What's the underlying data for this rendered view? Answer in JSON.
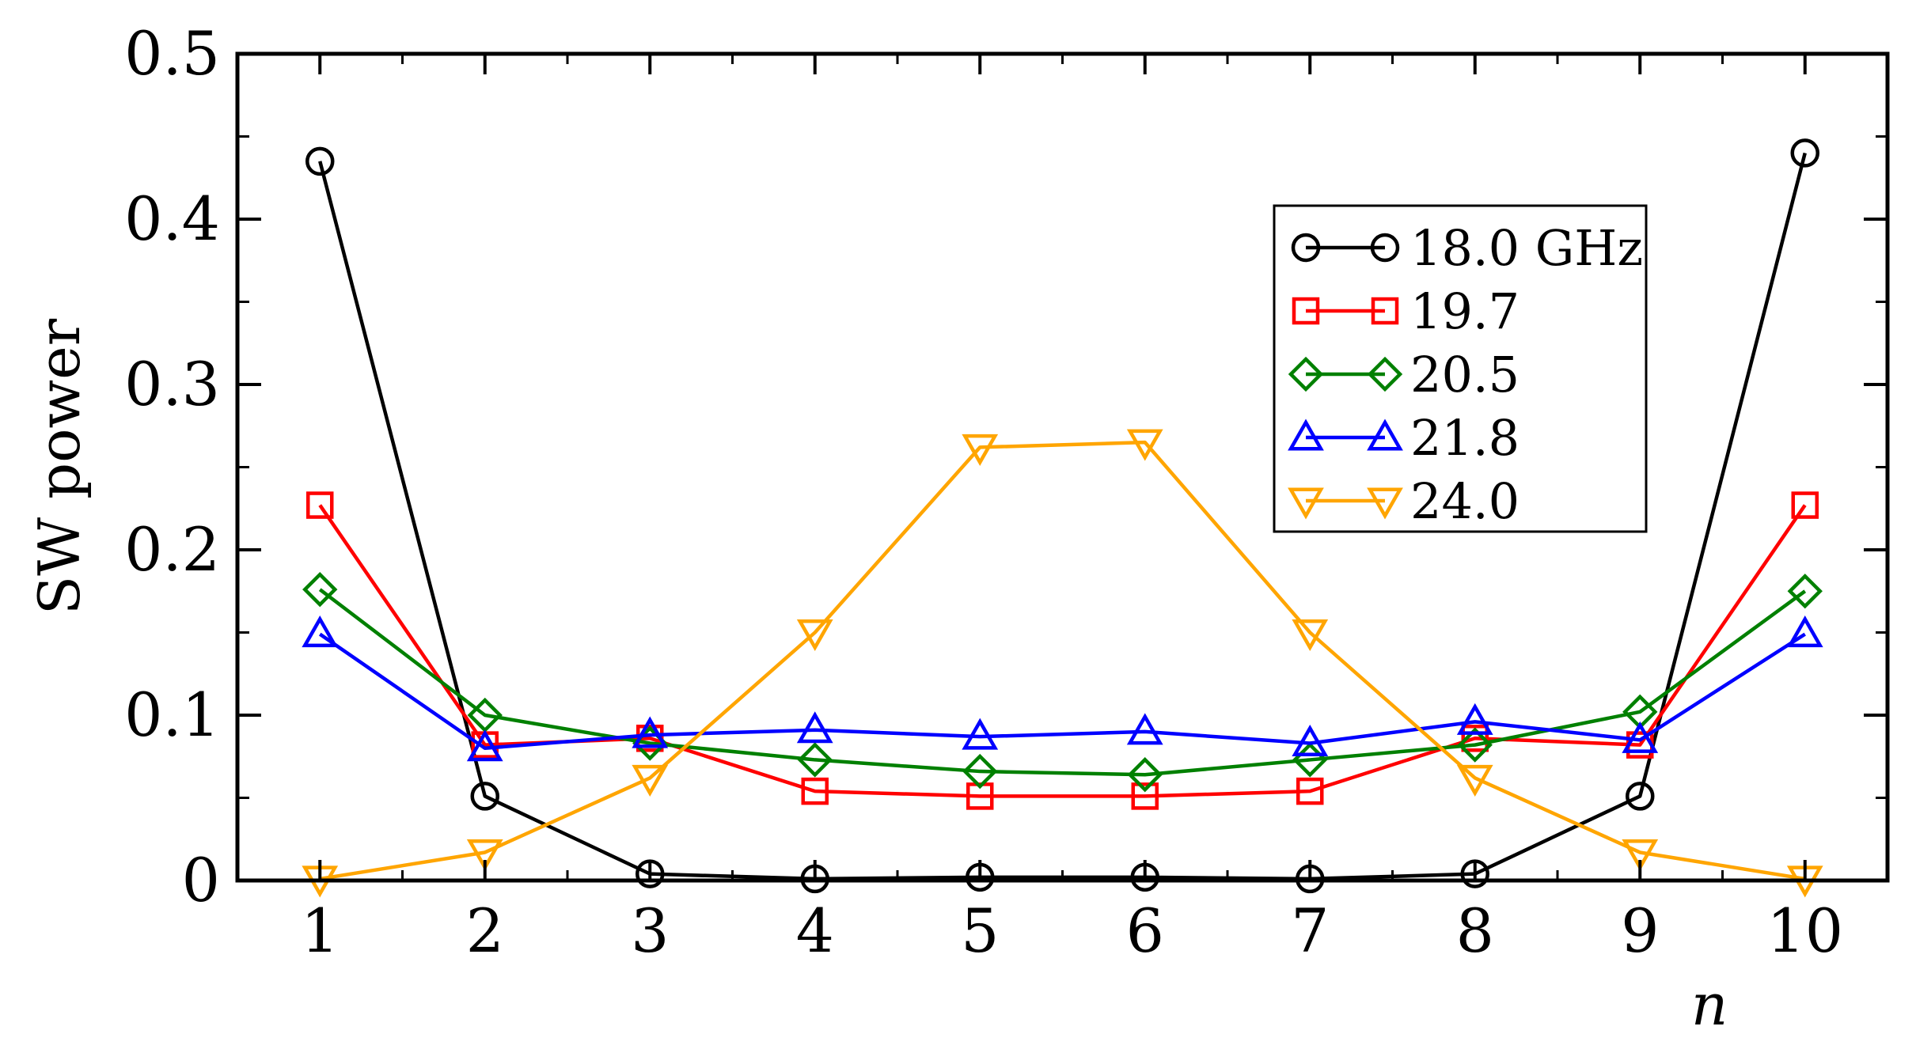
{
  "chart_data": {
    "type": "line",
    "title": "",
    "xlabel": "n",
    "ylabel": "SW power",
    "xlim": [
      0.5,
      10.5
    ],
    "ylim": [
      0,
      0.5
    ],
    "x_ticks": [
      "1",
      "2",
      "3",
      "4",
      "5",
      "6",
      "7",
      "8",
      "9",
      "10"
    ],
    "y_ticks": [
      "0",
      "0.1",
      "0.2",
      "0.3",
      "0.4",
      "0.5"
    ],
    "x": [
      1,
      2,
      3,
      4,
      5,
      6,
      7,
      8,
      9,
      10
    ],
    "legend_position": "top-right",
    "grid": false,
    "series": [
      {
        "name": "18.0 GHz",
        "color": "#000000",
        "marker": "circle",
        "values": [
          0.435,
          0.051,
          0.004,
          0.001,
          0.002,
          0.002,
          0.001,
          0.004,
          0.051,
          0.44
        ]
      },
      {
        "name": "19.7",
        "color": "#ff0000",
        "marker": "square",
        "values": [
          0.227,
          0.082,
          0.086,
          0.054,
          0.051,
          0.051,
          0.054,
          0.086,
          0.082,
          0.227
        ]
      },
      {
        "name": "20.5",
        "color": "#008000",
        "marker": "diamond",
        "values": [
          0.176,
          0.1,
          0.083,
          0.073,
          0.066,
          0.064,
          0.073,
          0.082,
          0.102,
          0.175
        ]
      },
      {
        "name": "21.8",
        "color": "#0000ff",
        "marker": "triangle-up",
        "values": [
          0.149,
          0.08,
          0.088,
          0.091,
          0.087,
          0.09,
          0.083,
          0.096,
          0.085,
          0.149
        ]
      },
      {
        "name": "24.0",
        "color": "#ffa500",
        "marker": "triangle-down",
        "values": [
          0.001,
          0.017,
          0.062,
          0.15,
          0.262,
          0.265,
          0.15,
          0.062,
          0.017,
          0.001
        ]
      }
    ]
  }
}
